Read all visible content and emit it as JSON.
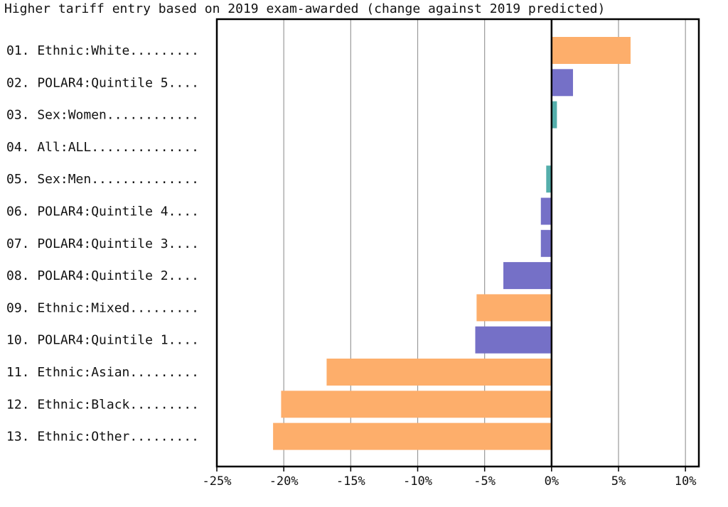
{
  "chart_data": {
    "type": "bar",
    "orientation": "horizontal",
    "title": "Higher tariff entry based on 2019 exam-awarded (change against 2019 predicted)",
    "xlabel": "",
    "ylabel": "",
    "xlim": [
      -25,
      11
    ],
    "xticks": [
      -25,
      -20,
      -15,
      -10,
      -5,
      0,
      5,
      10
    ],
    "xtick_labels": [
      "-25%",
      "-20%",
      "-15%",
      "-10%",
      "-5%",
      "0%",
      "5%",
      "10%"
    ],
    "grid": "vertical",
    "categories": [
      "01. Ethnic:White.........",
      "02. POLAR4:Quintile 5....",
      "03. Sex:Women............",
      "04. All:ALL..............",
      "05. Sex:Men..............",
      "06. POLAR4:Quintile 4....",
      "07. POLAR4:Quintile 3....",
      "08. POLAR4:Quintile 2....",
      "09. Ethnic:Mixed.........",
      "10. POLAR4:Quintile 1....",
      "11. Ethnic:Asian.........",
      "12. Ethnic:Black.........",
      "13. Ethnic:Other........."
    ],
    "values": [
      5.9,
      1.6,
      0.4,
      0,
      -0.4,
      -0.8,
      -0.8,
      -3.6,
      -5.6,
      -5.7,
      -16.8,
      -20.2,
      -20.8
    ],
    "groups": [
      "Ethnic",
      "POLAR4",
      "Sex",
      "All",
      "Sex",
      "POLAR4",
      "POLAR4",
      "POLAR4",
      "Ethnic",
      "POLAR4",
      "Ethnic",
      "Ethnic",
      "Ethnic"
    ],
    "colors": {
      "Ethnic": "#fdae6b",
      "POLAR4": "#7570c7",
      "Sex": "#54aeab",
      "All": "#999999",
      "grid": "#9a9a9a",
      "frame": "#000000"
    }
  }
}
